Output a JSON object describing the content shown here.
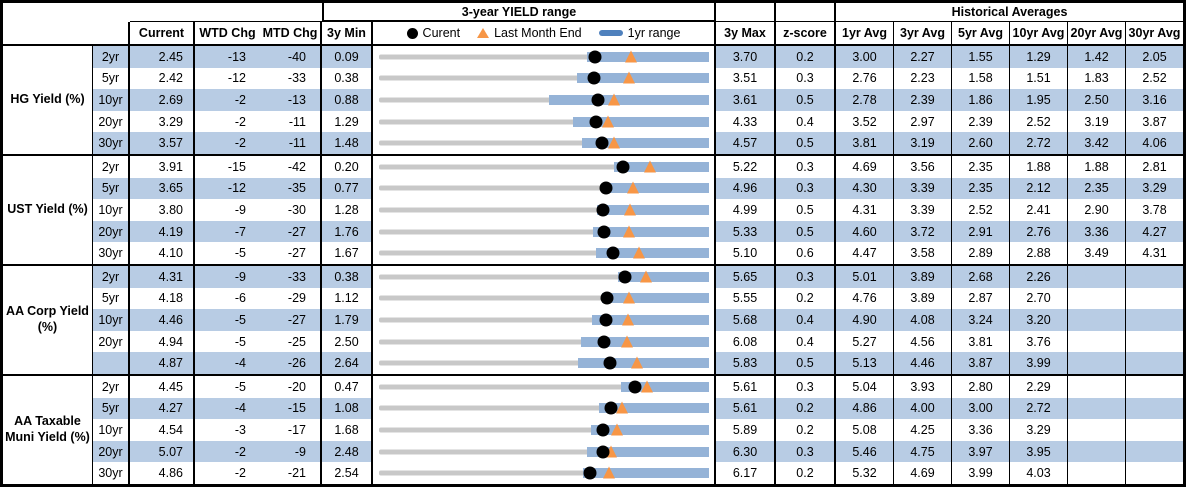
{
  "title_row": {
    "range_title": "3-year YIELD range",
    "historical_title": "Historical Averages"
  },
  "columns": {
    "current": "Current",
    "wtd": "WTD Chg",
    "mtd": "MTD Chg",
    "min3y": "3y Min",
    "max3y": "3y Max",
    "zscore": "z-score",
    "avgs": [
      "1yr Avg",
      "3yr Avg",
      "5yr Avg",
      "10yr Avg",
      "20yr Avg",
      "30yr Avg"
    ]
  },
  "legend": {
    "current": "Curent",
    "last_month_end": "Last Month End",
    "range_1yr": "1yr range"
  },
  "colors": {
    "row_shade": "#b8cce4",
    "bar_blue": "#95b3d7",
    "track_gray": "#c8c8c8",
    "marker_orange": "#f79646",
    "legend_bar_blue": "#4f81bd",
    "dot_black": "#000000"
  },
  "chart_data": {
    "type": "table",
    "title": "3-year YIELD range",
    "legend_entries": [
      "Curent",
      "Last Month End",
      "1yr range"
    ],
    "sections": [
      {
        "label": "HG Yield (%)",
        "rows": [
          {
            "tenor": "2yr",
            "current": "2.45",
            "wtd": "-13",
            "mtd": "-40",
            "min": "0.09",
            "max": "3.70",
            "z": "0.2",
            "avgs": [
              "3.00",
              "2.27",
              "1.55",
              "1.29",
              "1.42",
              "2.05"
            ],
            "last_month_end": 2.85,
            "range_1yr": [
              2.36,
              3.7
            ]
          },
          {
            "tenor": "5yr",
            "current": "2.42",
            "wtd": "-12",
            "mtd": "-33",
            "min": "0.38",
            "max": "3.51",
            "z": "0.3",
            "avgs": [
              "2.76",
              "2.23",
              "1.58",
              "1.51",
              "1.83",
              "2.52"
            ],
            "last_month_end": 2.75,
            "range_1yr": [
              2.26,
              3.51
            ]
          },
          {
            "tenor": "10yr",
            "current": "2.69",
            "wtd": "-2",
            "mtd": "-13",
            "min": "0.88",
            "max": "3.61",
            "z": "0.5",
            "avgs": [
              "2.78",
              "2.39",
              "1.86",
              "1.95",
              "2.50",
              "3.16"
            ],
            "last_month_end": 2.82,
            "range_1yr": [
              2.29,
              3.61
            ]
          },
          {
            "tenor": "20yr",
            "current": "3.29",
            "wtd": "-2",
            "mtd": "-11",
            "min": "1.29",
            "max": "4.33",
            "z": "0.4",
            "avgs": [
              "3.52",
              "2.97",
              "2.39",
              "2.52",
              "3.19",
              "3.87"
            ],
            "last_month_end": 3.4,
            "range_1yr": [
              3.08,
              4.33
            ]
          },
          {
            "tenor": "30yr",
            "current": "3.57",
            "wtd": "-2",
            "mtd": "-11",
            "min": "1.48",
            "max": "4.57",
            "z": "0.5",
            "avgs": [
              "3.81",
              "3.19",
              "2.60",
              "2.72",
              "3.42",
              "4.06"
            ],
            "last_month_end": 3.68,
            "range_1yr": [
              3.38,
              4.57
            ]
          }
        ]
      },
      {
        "label": "UST Yield (%)",
        "rows": [
          {
            "tenor": "2yr",
            "current": "3.91",
            "wtd": "-15",
            "mtd": "-42",
            "min": "0.20",
            "max": "5.22",
            "z": "0.3",
            "avgs": [
              "4.69",
              "3.56",
              "2.35",
              "1.88",
              "1.88",
              "2.81"
            ],
            "last_month_end": 4.33,
            "range_1yr": [
              3.77,
              5.22
            ]
          },
          {
            "tenor": "5yr",
            "current": "3.65",
            "wtd": "-12",
            "mtd": "-35",
            "min": "0.77",
            "max": "4.96",
            "z": "0.3",
            "avgs": [
              "4.30",
              "3.39",
              "2.35",
              "2.12",
              "2.35",
              "3.29"
            ],
            "last_month_end": 4.0,
            "range_1yr": [
              3.61,
              4.96
            ]
          },
          {
            "tenor": "10yr",
            "current": "3.80",
            "wtd": "-9",
            "mtd": "-30",
            "min": "1.28",
            "max": "4.99",
            "z": "0.5",
            "avgs": [
              "4.31",
              "3.39",
              "2.52",
              "2.41",
              "2.90",
              "3.78"
            ],
            "last_month_end": 4.1,
            "range_1yr": [
              3.73,
              4.99
            ]
          },
          {
            "tenor": "20yr",
            "current": "4.19",
            "wtd": "-7",
            "mtd": "-27",
            "min": "1.76",
            "max": "5.33",
            "z": "0.5",
            "avgs": [
              "4.60",
              "3.72",
              "2.91",
              "2.76",
              "3.36",
              "4.27"
            ],
            "last_month_end": 4.46,
            "range_1yr": [
              4.07,
              5.33
            ]
          },
          {
            "tenor": "30yr",
            "current": "4.10",
            "wtd": "-5",
            "mtd": "-27",
            "min": "1.67",
            "max": "5.10",
            "z": "0.6",
            "avgs": [
              "4.47",
              "3.58",
              "2.89",
              "2.88",
              "3.49",
              "4.31"
            ],
            "last_month_end": 4.37,
            "range_1yr": [
              3.93,
              5.1
            ]
          }
        ]
      },
      {
        "label": "AA Corp Yield (%)",
        "rows": [
          {
            "tenor": "2yr",
            "current": "4.31",
            "wtd": "-9",
            "mtd": "-33",
            "min": "0.38",
            "max": "5.65",
            "z": "0.3",
            "avgs": [
              "5.01",
              "3.89",
              "2.68",
              "2.26",
              "",
              ""
            ],
            "last_month_end": 4.64,
            "range_1yr": [
              4.19,
              5.65
            ]
          },
          {
            "tenor": "5yr",
            "current": "4.18",
            "wtd": "-6",
            "mtd": "-29",
            "min": "1.12",
            "max": "5.55",
            "z": "0.2",
            "avgs": [
              "4.76",
              "3.89",
              "2.87",
              "2.70",
              "",
              ""
            ],
            "last_month_end": 4.47,
            "range_1yr": [
              4.11,
              5.55
            ]
          },
          {
            "tenor": "10yr",
            "current": "4.46",
            "wtd": "-5",
            "mtd": "-27",
            "min": "1.79",
            "max": "5.68",
            "z": "0.4",
            "avgs": [
              "4.90",
              "4.08",
              "3.24",
              "3.20",
              "",
              ""
            ],
            "last_month_end": 4.73,
            "range_1yr": [
              4.3,
              5.68
            ]
          },
          {
            "tenor": "20yr",
            "current": "4.94",
            "wtd": "-5",
            "mtd": "-25",
            "min": "2.50",
            "max": "6.08",
            "z": "0.4",
            "avgs": [
              "5.27",
              "4.56",
              "3.81",
              "3.76",
              "",
              ""
            ],
            "last_month_end": 5.19,
            "range_1yr": [
              4.69,
              6.08
            ]
          },
          {
            "tenor": "",
            "current": "4.87",
            "wtd": "-4",
            "mtd": "-26",
            "min": "2.64",
            "max": "5.83",
            "z": "0.5",
            "avgs": [
              "5.13",
              "4.46",
              "3.87",
              "3.99",
              "",
              ""
            ],
            "last_month_end": 5.13,
            "range_1yr": [
              4.56,
              5.83
            ]
          }
        ]
      },
      {
        "label": "AA Taxable Muni Yield (%)",
        "rows": [
          {
            "tenor": "2yr",
            "current": "4.45",
            "wtd": "-5",
            "mtd": "-20",
            "min": "0.47",
            "max": "5.61",
            "z": "0.3",
            "avgs": [
              "5.04",
              "3.93",
              "2.80",
              "2.29",
              "",
              ""
            ],
            "last_month_end": 4.65,
            "range_1yr": [
              4.24,
              5.61
            ]
          },
          {
            "tenor": "5yr",
            "current": "4.27",
            "wtd": "-4",
            "mtd": "-15",
            "min": "1.08",
            "max": "5.61",
            "z": "0.2",
            "avgs": [
              "4.86",
              "4.00",
              "3.00",
              "2.72",
              "",
              ""
            ],
            "last_month_end": 4.42,
            "range_1yr": [
              4.1,
              5.61
            ]
          },
          {
            "tenor": "10yr",
            "current": "4.54",
            "wtd": "-3",
            "mtd": "-17",
            "min": "1.68",
            "max": "5.89",
            "z": "0.2",
            "avgs": [
              "5.08",
              "4.25",
              "3.36",
              "3.29",
              "",
              ""
            ],
            "last_month_end": 4.71,
            "range_1yr": [
              4.39,
              5.89
            ]
          },
          {
            "tenor": "20yr",
            "current": "5.07",
            "wtd": "-2",
            "mtd": "-9",
            "min": "2.48",
            "max": "6.30",
            "z": "0.3",
            "avgs": [
              "5.46",
              "4.75",
              "3.97",
              "3.95",
              "",
              ""
            ],
            "last_month_end": 5.16,
            "range_1yr": [
              4.89,
              6.3
            ]
          },
          {
            "tenor": "30yr",
            "current": "4.86",
            "wtd": "-2",
            "mtd": "-21",
            "min": "2.54",
            "max": "6.17",
            "z": "0.2",
            "avgs": [
              "5.32",
              "4.69",
              "3.99",
              "4.03",
              "",
              ""
            ],
            "last_month_end": 5.07,
            "range_1yr": [
              4.78,
              6.17
            ]
          }
        ]
      }
    ]
  }
}
